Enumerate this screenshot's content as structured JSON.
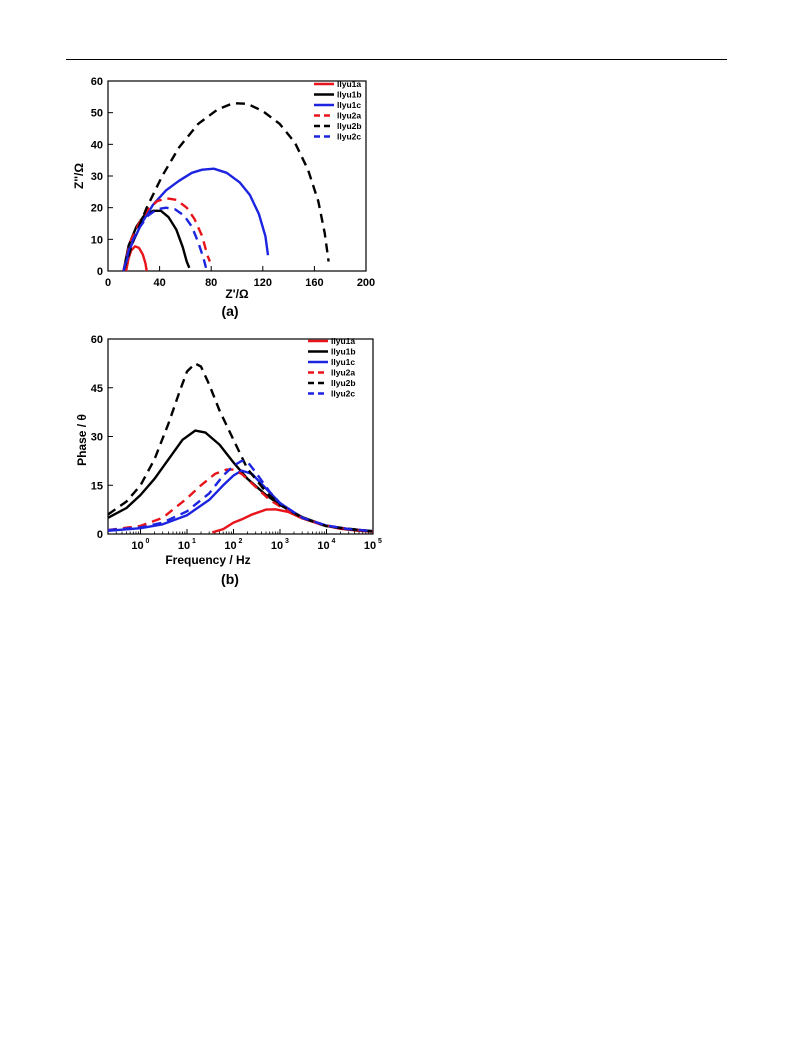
{
  "chart_data": [
    {
      "type": "line",
      "panel_label": "(a)",
      "xlabel": "Z'/Ω",
      "ylabel": "Z''/Ω",
      "xlim": [
        0,
        200
      ],
      "ylim": [
        0,
        60
      ],
      "xticks": [
        "0",
        "40",
        "80",
        "120",
        "160",
        "200"
      ],
      "yticks": [
        "0",
        "10",
        "20",
        "30",
        "40",
        "50",
        "60"
      ],
      "legend": "top-right",
      "series": [
        {
          "name": "llyu1a",
          "color": "#e8141b",
          "dash": false,
          "x": [
            14,
            16,
            18,
            21,
            24,
            27,
            29,
            30
          ],
          "y": [
            0,
            4,
            6.5,
            7.8,
            7.3,
            5.2,
            2.5,
            0
          ]
        },
        {
          "name": "llyu1b",
          "color": "#000000",
          "dash": false,
          "x": [
            12,
            16,
            22,
            28,
            35,
            41,
            47,
            53,
            58,
            61,
            63
          ],
          "y": [
            0,
            8,
            14,
            17.5,
            19,
            19,
            17,
            13,
            7.5,
            3,
            1
          ]
        },
        {
          "name": "llyu1c",
          "color": "#1c24e0",
          "dash": false,
          "x": [
            12,
            18,
            26,
            35,
            45,
            55,
            65,
            73,
            82,
            92,
            102,
            110,
            117,
            122,
            124
          ],
          "y": [
            0,
            8,
            15,
            21,
            25.5,
            28.5,
            31,
            32,
            32.3,
            31,
            28,
            24,
            18,
            11,
            5
          ]
        },
        {
          "name": "llyu2a",
          "color": "#e8141b",
          "dash": true,
          "x": [
            12,
            17,
            24,
            31,
            38,
            45,
            53,
            61,
            67,
            73,
            77,
            79
          ],
          "y": [
            0,
            9,
            15,
            19.5,
            22,
            23,
            22.5,
            20,
            16.5,
            11,
            5,
            3
          ]
        },
        {
          "name": "llyu2b",
          "color": "#000000",
          "dash": true,
          "x": [
            12,
            20,
            30,
            42,
            55,
            70,
            85,
            97,
            108,
            120,
            133,
            145,
            155,
            163,
            168,
            171
          ],
          "y": [
            0,
            10,
            20,
            30,
            39,
            46.5,
            51,
            53,
            52.8,
            50.5,
            46.5,
            40.5,
            32,
            22,
            12,
            3
          ]
        },
        {
          "name": "llyu2c",
          "color": "#1c24e0",
          "dash": true,
          "x": [
            12,
            17,
            24,
            31,
            38,
            45,
            52,
            59,
            65,
            70,
            74,
            76
          ],
          "y": [
            0,
            8,
            13.5,
            17.5,
            19.5,
            20,
            19.5,
            17.5,
            14,
            9,
            4,
            1
          ]
        }
      ]
    },
    {
      "type": "line",
      "panel_label": "(b)",
      "xlabel": "Frequency / Hz",
      "ylabel": "Phase / θ",
      "xscale": "log",
      "xlim": [
        0.2,
        100000
      ],
      "ylim": [
        0,
        60
      ],
      "xticks": [
        "10^0",
        "10^1",
        "10^2",
        "10^3",
        "10^4",
        "10^5"
      ],
      "yticks": [
        "0",
        "15",
        "30",
        "45",
        "60"
      ],
      "legend": "top-right",
      "series": [
        {
          "name": "llyu1a",
          "color": "#e8141b",
          "dash": false,
          "x": [
            35,
            60,
            100,
            150,
            250,
            500,
            800,
            1500,
            3000,
            8000,
            20000,
            50000,
            100000
          ],
          "y": [
            0.5,
            1.5,
            3.5,
            4.5,
            6,
            7.5,
            7.6,
            6.8,
            4.8,
            2.8,
            1.6,
            1.0,
            0.7
          ]
        },
        {
          "name": "llyu1b",
          "color": "#000000",
          "dash": false,
          "x": [
            0.2,
            0.5,
            1,
            2,
            4,
            8,
            15,
            25,
            50,
            100,
            200,
            500,
            1000,
            3000,
            10000,
            30000,
            100000
          ],
          "y": [
            5,
            8,
            12,
            17,
            23,
            29,
            31.8,
            31.2,
            27.5,
            22,
            17,
            12,
            9,
            5.2,
            2.5,
            1.4,
            0.8
          ]
        },
        {
          "name": "llyu1c",
          "color": "#1c24e0",
          "dash": false,
          "x": [
            0.2,
            1,
            3,
            10,
            30,
            60,
            100,
            150,
            250,
            500,
            1000,
            3000,
            10000,
            30000,
            100000
          ],
          "y": [
            1,
            1.8,
            3,
            5.8,
            10.5,
            15,
            18,
            19.5,
            18.5,
            14,
            9.5,
            5,
            2.6,
            1.5,
            0.9
          ]
        },
        {
          "name": "llyu2a",
          "color": "#e8141b",
          "dash": true,
          "x": [
            0.2,
            1,
            3,
            10,
            20,
            40,
            70,
            100,
            150,
            300,
            600,
            1000,
            3000,
            10000,
            30000,
            100000
          ],
          "y": [
            1.2,
            2.5,
            5,
            11,
            15,
            18.5,
            19.8,
            19.8,
            18.5,
            14.5,
            10.5,
            8.5,
            5,
            2.6,
            1.5,
            0.9
          ]
        },
        {
          "name": "llyu2b",
          "color": "#000000",
          "dash": true,
          "x": [
            0.2,
            0.5,
            1,
            2,
            4,
            7,
            10,
            15,
            20,
            30,
            50,
            100,
            200,
            500,
            1000,
            3000,
            10000,
            100000
          ],
          "y": [
            6,
            10,
            15,
            23,
            34,
            44,
            50,
            52.5,
            51.5,
            46,
            38,
            29,
            20,
            13,
            9,
            5,
            2.4,
            0.8
          ]
        },
        {
          "name": "llyu2c",
          "color": "#1c24e0",
          "dash": true,
          "x": [
            0.2,
            1,
            3,
            10,
            30,
            60,
            100,
            150,
            200,
            300,
            600,
            1000,
            3000,
            10000,
            30000,
            100000
          ],
          "y": [
            1.2,
            2,
            3.5,
            7,
            12.5,
            18,
            21,
            22.5,
            22.2,
            19,
            13,
            9.5,
            5,
            2.6,
            1.5,
            0.9
          ]
        }
      ]
    }
  ]
}
